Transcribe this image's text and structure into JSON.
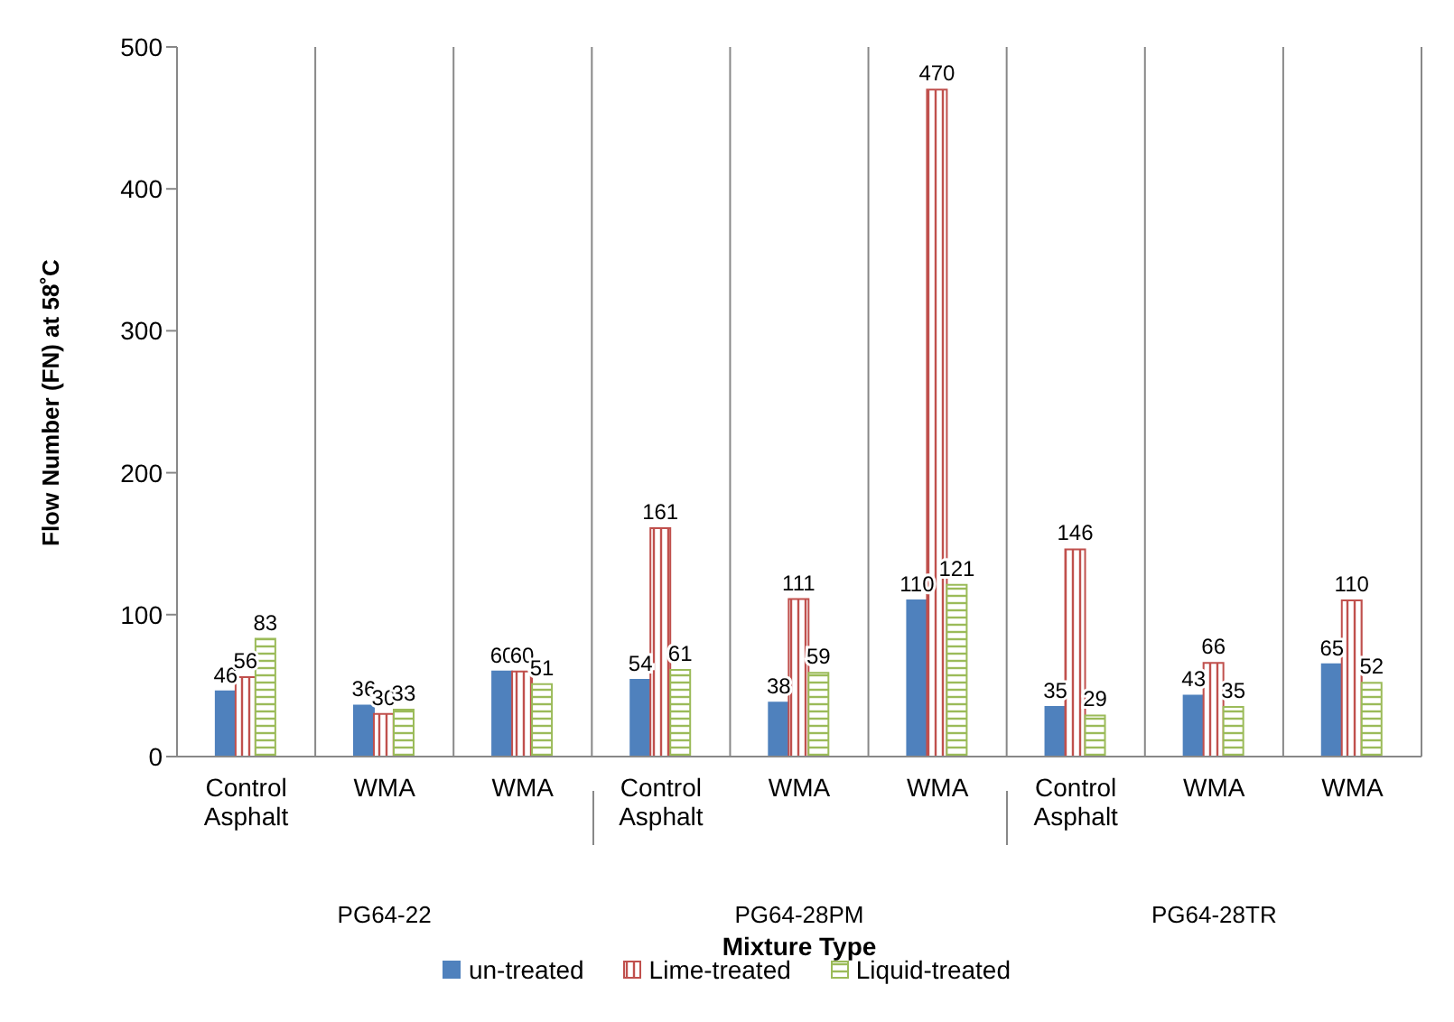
{
  "chart_data": {
    "type": "bar",
    "ylabel": "Flow Number (FN) at 58˚C",
    "xlabel": "Mixture Type",
    "categories": [
      "Control Asphalt",
      "WMA",
      "WMA",
      "Control Asphalt",
      "WMA",
      "WMA",
      "Control Asphalt",
      "WMA",
      "WMA"
    ],
    "annotations": [
      "PG64-22",
      "PG64-28PM",
      "PG64-28TR"
    ],
    "series": [
      {
        "name": "un-treated",
        "color": "#4f81bd",
        "values": [
          46,
          36,
          60,
          54,
          38,
          110,
          35,
          43,
          65
        ]
      },
      {
        "name": "Lime-treated",
        "color": "#c0504d",
        "values": [
          56,
          30,
          60,
          161,
          111,
          470,
          146,
          66,
          110
        ]
      },
      {
        "name": "Liquid-treated",
        "color": "#9bbb59",
        "values": [
          83,
          33,
          51,
          61,
          59,
          121,
          29,
          35,
          52
        ]
      }
    ],
    "ylim": [
      0,
      500
    ],
    "yticks": [
      0,
      100,
      200,
      300,
      400,
      500
    ],
    "grid": "x",
    "legend": "bottom",
    "data_labels": true
  }
}
